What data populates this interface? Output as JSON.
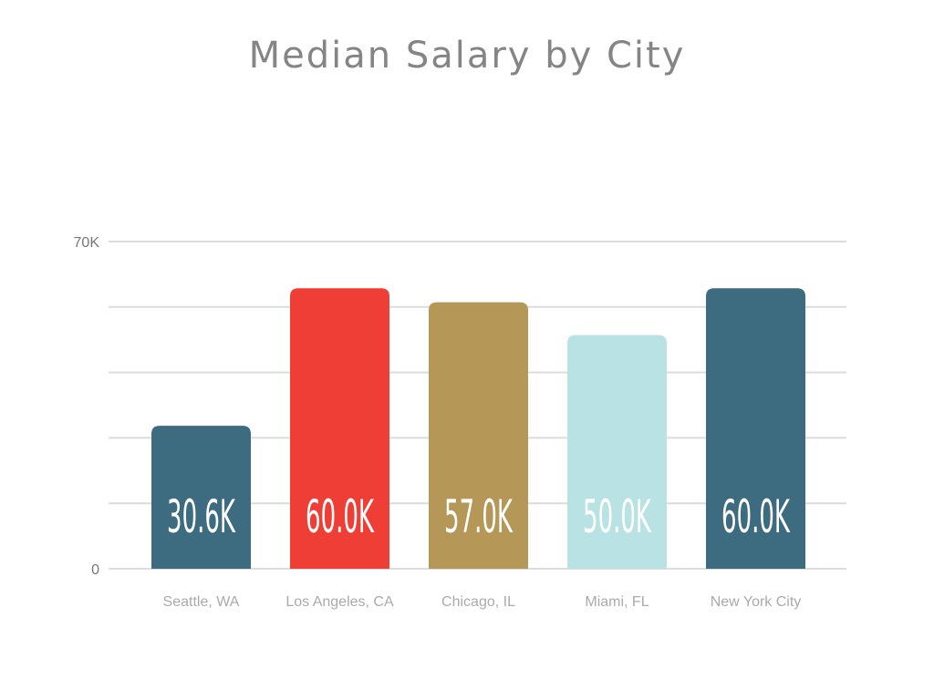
{
  "chart_data": {
    "type": "bar",
    "title": "Median Salary by City",
    "xlabel": "",
    "ylabel": "",
    "ylim": [
      0,
      70000
    ],
    "grid_step": 14000,
    "ytick_labels": [
      {
        "value": 0,
        "label": "0"
      },
      {
        "value": 70000,
        "label": "70K"
      }
    ],
    "categories": [
      "Seattle, WA",
      "Los Angeles, CA",
      "Chicago, IL",
      "Miami, FL",
      "New York City"
    ],
    "values": [
      30600,
      60000,
      57000,
      50000,
      60000
    ],
    "data_labels": [
      "30.6K",
      "60.0K",
      "57.0K",
      "50.0K",
      "60.0K"
    ],
    "colors": [
      "#3d6b7f",
      "#ef3e36",
      "#b59758",
      "#b8e2e3",
      "#3d6b7f"
    ],
    "grid": true
  }
}
